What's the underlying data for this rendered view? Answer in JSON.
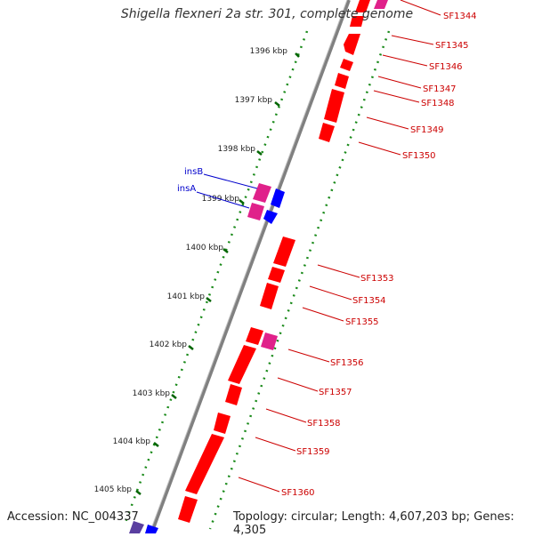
{
  "title": "Shigella flexneri 2a str. 301, complete genome",
  "accession": "Accession: NC_004337",
  "topology": "Topology: circular; Length: 4,607,203 bp; Genes: 4,305",
  "colors": {
    "backbone": "#808080",
    "gene_forward": "#ff0000",
    "gene_pink": "#e0218a",
    "gene_blue": "#0000ff",
    "tick_major": "#006400",
    "tick_minor": "#1a8a1a",
    "gene_label": "#cc0000",
    "ins_label": "#0000cc"
  },
  "kbp_ticks": [
    "1396 kbp",
    "1397 kbp",
    "1398 kbp",
    "1399 kbp",
    "1400 kbp",
    "1401 kbp",
    "1402 kbp",
    "1403 kbp",
    "1404 kbp",
    "1405 kbp"
  ],
  "gene_labels": [
    "SF1344",
    "SF1345",
    "SF1346",
    "SF1347",
    "SF1348",
    "SF1349",
    "SF1350",
    "SF1353",
    "SF1354",
    "SF1355",
    "SF1356",
    "SF1357",
    "SF1358",
    "SF1359",
    "SF1360"
  ],
  "ins_labels": [
    "insB",
    "insA"
  ]
}
